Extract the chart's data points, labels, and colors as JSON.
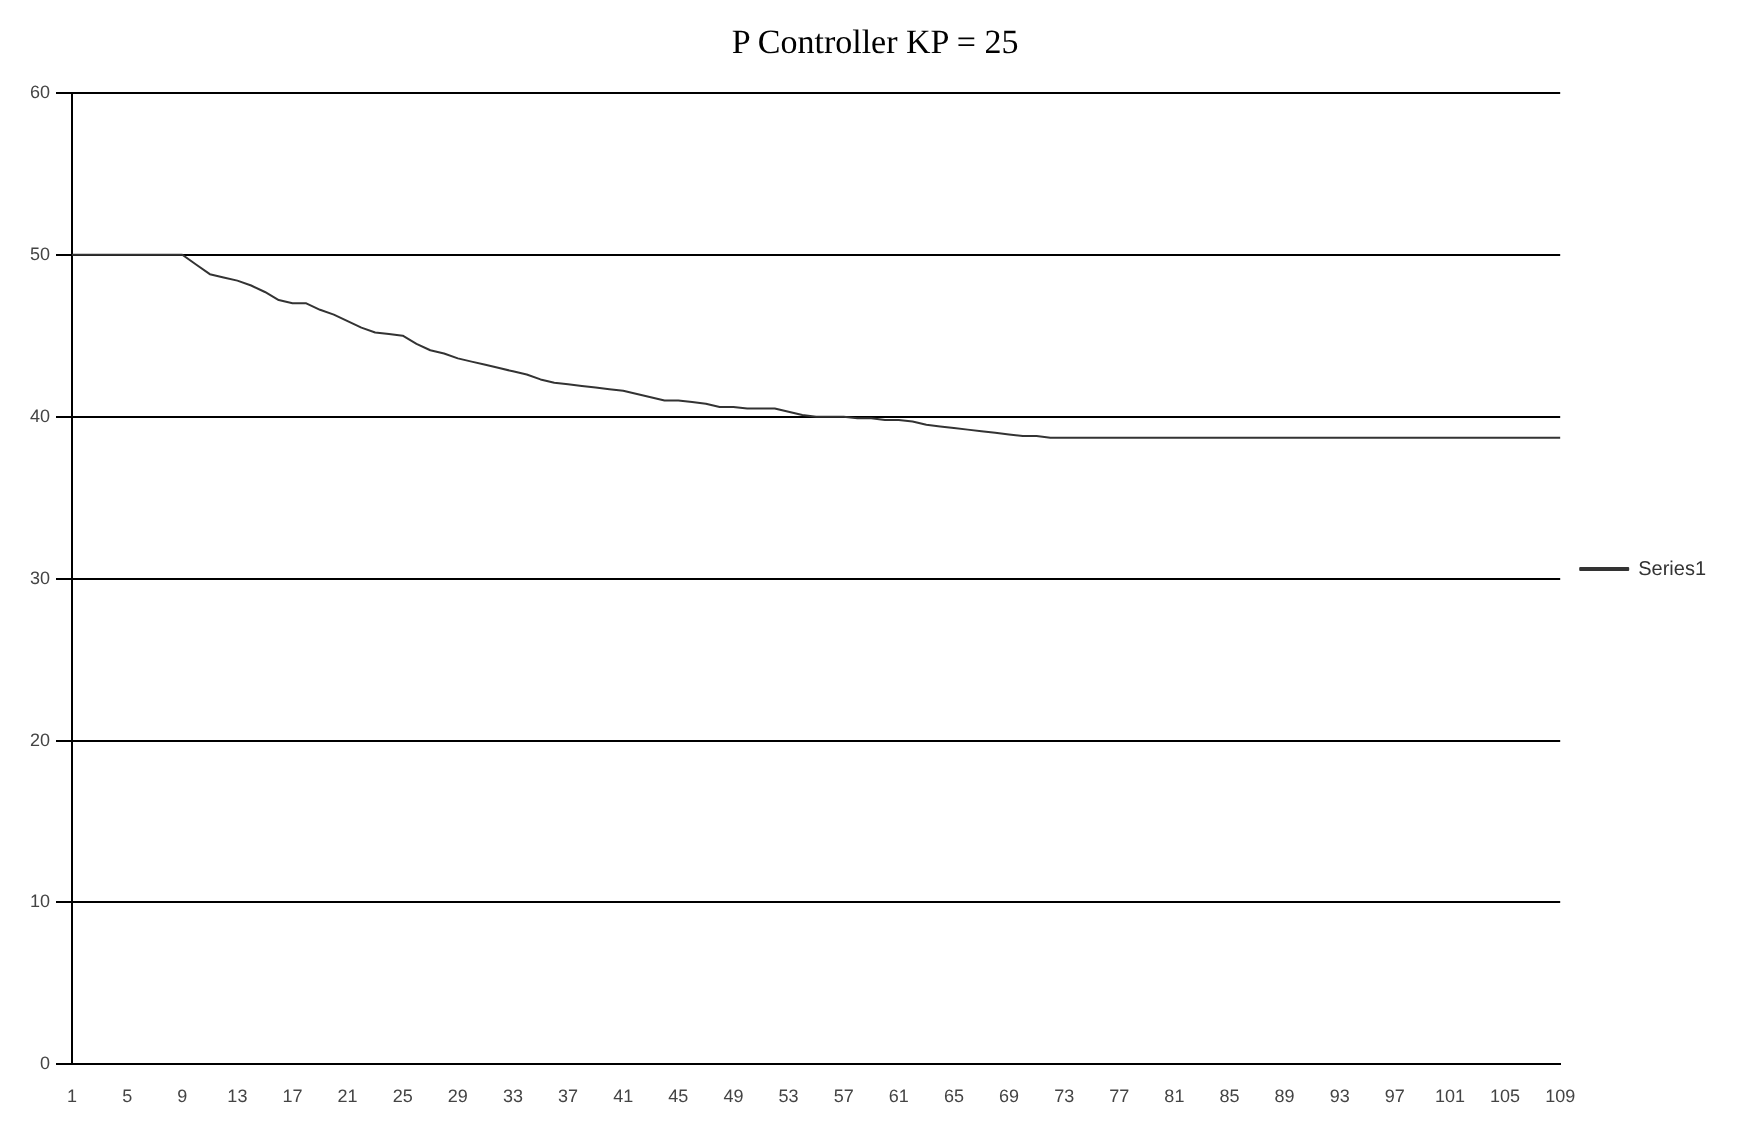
{
  "chart_data": {
    "type": "line",
    "title": "P Controller KP = 25",
    "categories": [
      "1",
      null,
      null,
      null,
      "5",
      null,
      null,
      null,
      "9",
      null,
      null,
      null,
      "13",
      null,
      null,
      null,
      "17",
      null,
      null,
      null,
      "21",
      null,
      null,
      null,
      "25",
      null,
      null,
      null,
      "29",
      null,
      null,
      null,
      "33",
      null,
      null,
      null,
      "37",
      null,
      null,
      null,
      "41",
      null,
      null,
      null,
      "45",
      null,
      null,
      null,
      "49",
      null,
      null,
      null,
      "53",
      null,
      null,
      null,
      "57",
      null,
      null,
      null,
      "61",
      null,
      null,
      null,
      "65",
      null,
      null,
      null,
      "69",
      null,
      null,
      null,
      "73",
      null,
      null,
      null,
      "77",
      null,
      null,
      null,
      "81",
      null,
      null,
      null,
      "85",
      null,
      null,
      null,
      "89",
      null,
      null,
      null,
      "93",
      null,
      null,
      null,
      "97",
      null,
      null,
      null,
      "101",
      null,
      null,
      null,
      "105",
      null,
      null,
      null,
      "109"
    ],
    "series": [
      {
        "name": "Series1",
        "color": "#333333",
        "values": [
          50,
          50,
          50,
          50,
          50,
          50,
          50,
          50,
          50,
          49.4,
          48.8,
          48.6,
          48.4,
          48.1,
          47.7,
          47.2,
          47.0,
          47.0,
          46.6,
          46.3,
          45.9,
          45.5,
          45.2,
          45.1,
          45.0,
          44.5,
          44.1,
          43.9,
          43.6,
          43.4,
          43.2,
          43.0,
          42.8,
          42.6,
          42.3,
          42.1,
          42.0,
          41.9,
          41.8,
          41.7,
          41.6,
          41.4,
          41.2,
          41.0,
          41.0,
          40.9,
          40.8,
          40.6,
          40.6,
          40.5,
          40.5,
          40.5,
          40.3,
          40.1,
          40.0,
          40.0,
          40.0,
          39.9,
          39.9,
          39.8,
          39.8,
          39.7,
          39.5,
          39.4,
          39.3,
          39.2,
          39.1,
          39.0,
          38.9,
          38.8,
          38.8,
          38.7,
          38.7,
          38.7,
          38.7,
          38.7,
          38.7,
          38.7,
          38.7,
          38.7,
          38.7,
          38.7,
          38.7,
          38.7,
          38.7,
          38.7,
          38.7,
          38.7,
          38.7,
          38.7,
          38.7,
          38.7,
          38.7,
          38.7,
          38.7,
          38.7,
          38.7,
          38.7,
          38.7,
          38.7,
          38.7,
          38.7,
          38.7,
          38.7,
          38.7,
          38.7,
          38.7,
          38.7,
          38.7
        ]
      }
    ],
    "ylim": [
      0,
      60
    ],
    "yticks": [
      0,
      10,
      20,
      30,
      40,
      50,
      60
    ],
    "grid": "y",
    "legend": "right",
    "marker": "none",
    "line_style": "solid"
  }
}
